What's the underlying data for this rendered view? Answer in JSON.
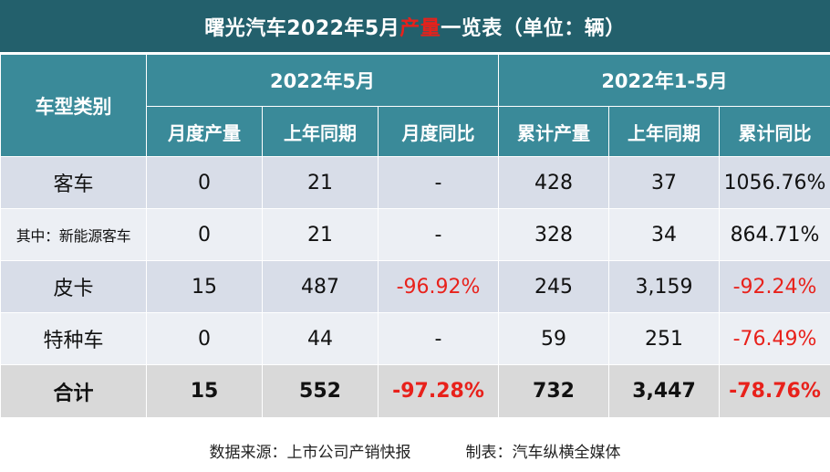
{
  "title": {
    "prefix": "曙光汽车2022年5月",
    "highlight": "产量",
    "suffix": "一览表（单位：辆）"
  },
  "colors": {
    "header_bg": "#23606c",
    "table_header_bg": "#3a8a99",
    "row_odd_bg": "#d8dde8",
    "row_even_bg": "#eceff4",
    "total_row_bg": "#d9d9d9",
    "negative_text": "#e8211b"
  },
  "table": {
    "type_header": "车型类别",
    "groups": [
      "2022年5月",
      "2022年1-5月"
    ],
    "columns": [
      "月度产量",
      "上年同期",
      "月度同比",
      "累计产量",
      "上年同期",
      "累计同比"
    ],
    "rows": [
      {
        "category": "客车",
        "values": [
          "0",
          "21",
          "-",
          "428",
          "37",
          "1056.76%"
        ]
      },
      {
        "category": "其中：新能源客车",
        "values": [
          "0",
          "21",
          "-",
          "328",
          "34",
          "864.71%"
        ]
      },
      {
        "category": "皮卡",
        "values": [
          "15",
          "487",
          "-96.92%",
          "245",
          "3,159",
          "-92.24%"
        ]
      },
      {
        "category": "特种车",
        "values": [
          "0",
          "44",
          "-",
          "59",
          "251",
          "-76.49%"
        ]
      },
      {
        "category": "合计",
        "values": [
          "15",
          "552",
          "-97.28%",
          "732",
          "3,447",
          "-78.76%"
        ]
      }
    ]
  },
  "footer": {
    "source": "数据来源：上市公司产销快报",
    "maker": "制表：汽车纵横全媒体"
  }
}
